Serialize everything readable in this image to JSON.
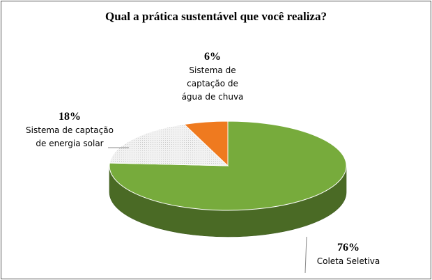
{
  "chart_data": {
    "type": "pie",
    "title": "Qual a prática sustentável que você realiza?",
    "slices": [
      {
        "label_lines": [
          "Coleta Seletiva"
        ],
        "value": 76,
        "value_label": "76%",
        "color": "#77ab3c"
      },
      {
        "label_lines": [
          "Sistema de captação",
          "de energia solar"
        ],
        "value": 18,
        "value_label": "18%",
        "color": "#f0f0f0"
      },
      {
        "label_lines": [
          "Sistema de",
          "captação de",
          "água de chuva"
        ],
        "value": 6,
        "value_label": "6%",
        "color": "#ef7a1f"
      }
    ],
    "legend": "none"
  }
}
